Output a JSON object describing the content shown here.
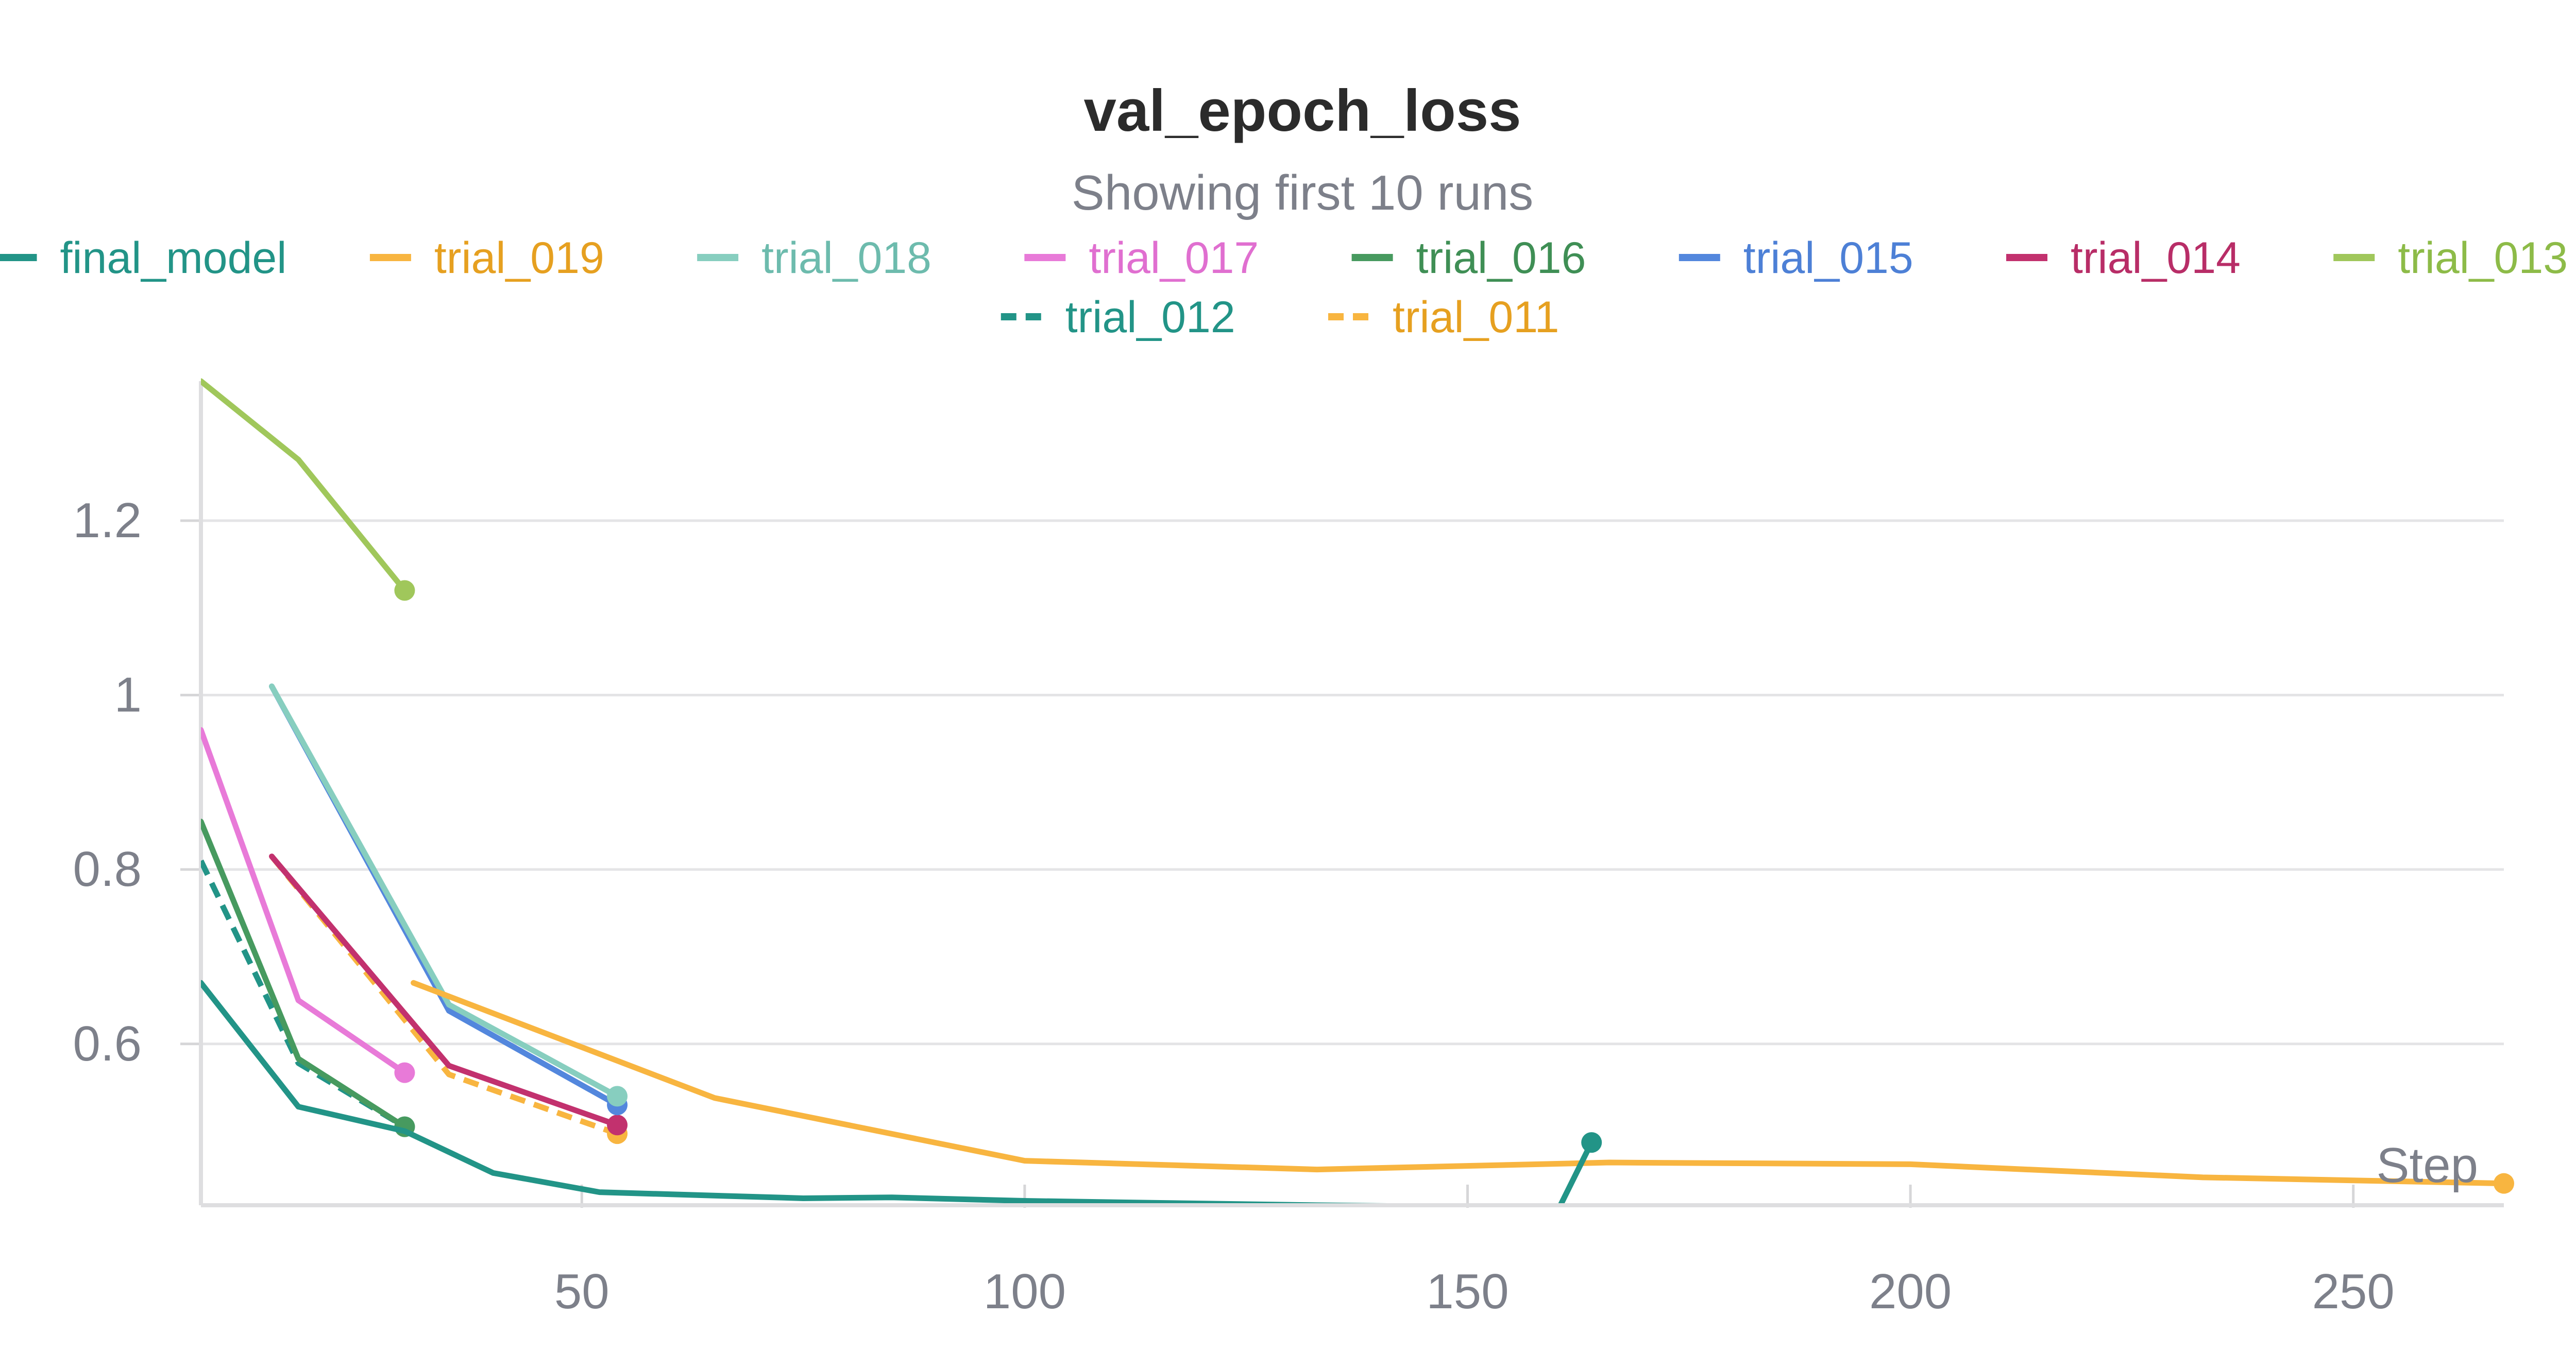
{
  "chart_data": {
    "type": "line",
    "title": "val_epoch_loss",
    "subtitle": "Showing first 10 runs",
    "xlabel": "Step",
    "ylabel": "",
    "xlim": [
      7,
      267
    ],
    "ylim": [
      0.415,
      1.36
    ],
    "x_ticks": [
      50,
      100,
      150,
      200,
      250
    ],
    "y_ticks": [
      0.6,
      0.8,
      1.0,
      1.2
    ],
    "y_tick_labels": [
      "0.6",
      "0.8",
      "1",
      "1.2"
    ],
    "x_tick_labels": [
      "50",
      "100",
      "150",
      "200",
      "250"
    ],
    "grid": "horizontal",
    "legend_position": "top",
    "series": [
      {
        "name": "final_model",
        "color": "#229487",
        "dash": false,
        "x": [
          7,
          18,
          30,
          40,
          52,
          75,
          85,
          100,
          133,
          160
        ],
        "y": [
          0.67,
          0.528,
          0.5,
          0.452,
          0.43,
          0.423,
          0.424,
          0.42,
          0.415,
          0.412
        ],
        "segments": [
          {
            "x": [
              160,
              164
            ],
            "y": [
              0.405,
              0.487
            ]
          }
        ],
        "end_marker": [
          164,
          0.487
        ]
      },
      {
        "name": "trial_019",
        "color": "#f8b540",
        "dash": false,
        "x": [
          31,
          65,
          100,
          133,
          166,
          200,
          233,
          267
        ],
        "y": [
          0.67,
          0.538,
          0.466,
          0.456,
          0.464,
          0.462,
          0.447,
          0.44
        ],
        "end_marker": [
          267,
          0.44
        ]
      },
      {
        "name": "trial_018",
        "color": "#87cebf",
        "dash": false,
        "x": [
          15,
          35,
          54
        ],
        "y": [
          1.01,
          0.645,
          0.54
        ],
        "end_marker": [
          54,
          0.54
        ]
      },
      {
        "name": "trial_017",
        "color": "#e87ad8",
        "dash": false,
        "x": [
          7,
          18,
          30
        ],
        "y": [
          0.96,
          0.65,
          0.567
        ],
        "end_marker": [
          30,
          0.567
        ]
      },
      {
        "name": "trial_016",
        "color": "#479a5f",
        "dash": false,
        "x": [
          7,
          18,
          30
        ],
        "y": [
          0.855,
          0.583,
          0.505
        ],
        "end_marker": [
          30,
          0.505
        ]
      },
      {
        "name": "trial_015",
        "color": "#5387dd",
        "dash": false,
        "x": [
          15,
          35,
          54
        ],
        "y": [
          1.01,
          0.638,
          0.53
        ],
        "end_marker": [
          54,
          0.53
        ]
      },
      {
        "name": "trial_014",
        "color": "#c2316e",
        "dash": false,
        "x": [
          15,
          35,
          54
        ],
        "y": [
          0.815,
          0.575,
          0.507
        ],
        "end_marker": [
          54,
          0.507
        ]
      },
      {
        "name": "trial_013",
        "color": "#a0c75b",
        "dash": false,
        "x": [
          7,
          18,
          30
        ],
        "y": [
          1.36,
          1.27,
          1.12
        ],
        "end_marker": [
          30,
          1.12
        ]
      },
      {
        "name": "trial_012",
        "color": "#229487",
        "dash": true,
        "x": [
          7,
          18,
          30
        ],
        "y": [
          0.81,
          0.578,
          0.505
        ],
        "end_marker": [
          30,
          0.505
        ]
      },
      {
        "name": "trial_011",
        "color": "#f8b540",
        "dash": true,
        "x": [
          15,
          35,
          54
        ],
        "y": [
          0.815,
          0.565,
          0.497
        ],
        "end_marker": [
          54,
          0.497
        ]
      }
    ]
  },
  "legend_rows": [
    [
      "final_model",
      "trial_019",
      "trial_018",
      "trial_017",
      "trial_016",
      "trial_015",
      "trial_014",
      "trial_013"
    ],
    [
      "trial_012",
      "trial_011"
    ]
  ],
  "legend_text_colors": {
    "final_model": "#229487",
    "trial_019": "#e6a020",
    "trial_018": "#6dbbad",
    "trial_017": "#e06fd0",
    "trial_016": "#3f8f55",
    "trial_015": "#4d80d6",
    "trial_014": "#b82d67",
    "trial_013": "#8dbb48",
    "trial_012": "#229487",
    "trial_011": "#e6a020"
  }
}
